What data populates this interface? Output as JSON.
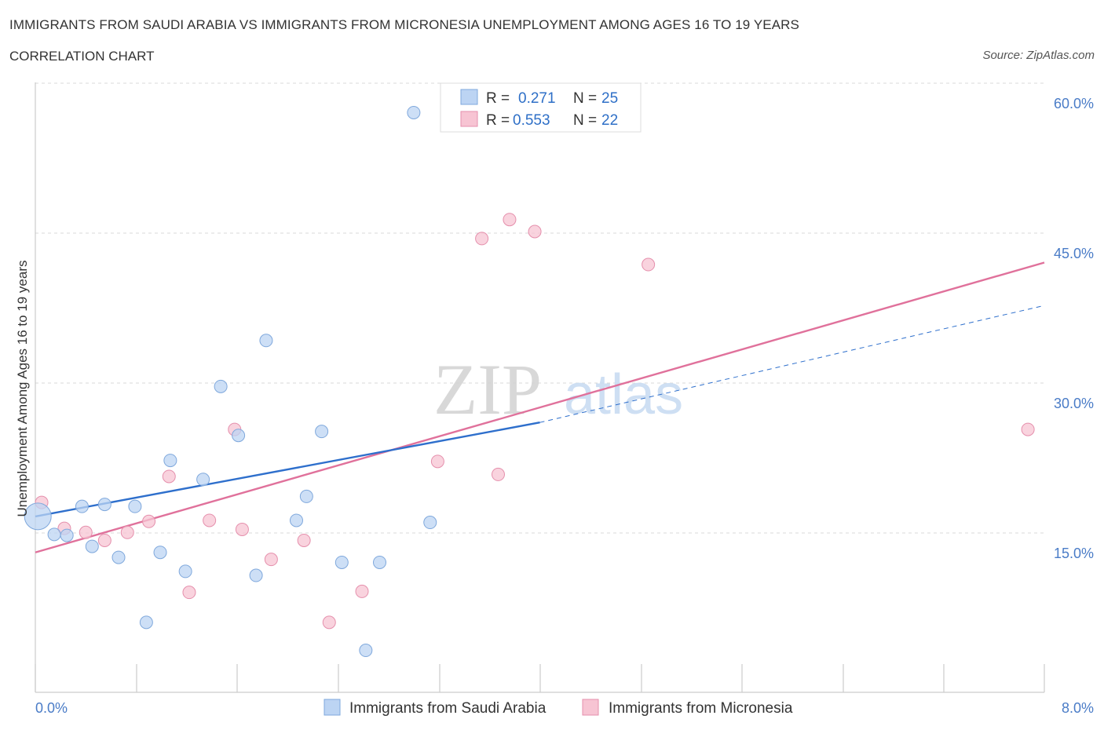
{
  "header": {
    "title": "IMMIGRANTS FROM SAUDI ARABIA VS IMMIGRANTS FROM MICRONESIA UNEMPLOYMENT AMONG AGES 16 TO 19 YEARS",
    "subtitle": "CORRELATION CHART",
    "source": "Source: ZipAtlas.com"
  },
  "watermark": {
    "zip": "ZIP",
    "atlas": "atlas"
  },
  "colors": {
    "blue_fill": "#bcd4f3",
    "blue_stroke": "#7fa8dc",
    "blue_line": "#2e6fcc",
    "pink_fill": "#f7c4d3",
    "pink_stroke": "#e58fac",
    "pink_line": "#e0719b",
    "grid": "#d8d8d8",
    "tick_text": "#4a7cc7"
  },
  "legend": {
    "rows": [
      {
        "r_label": "R =",
        "r_value": "0.271",
        "n_label": "N =",
        "n_value": "25"
      },
      {
        "r_label": "R =",
        "r_value": "0.553",
        "n_label": "N =",
        "n_value": "22"
      }
    ]
  },
  "chart_data": {
    "type": "scatter",
    "title": "IMMIGRANTS FROM SAUDI ARABIA VS IMMIGRANTS FROM MICRONESIA UNEMPLOYMENT AMONG AGES 16 TO 19 YEARS",
    "xlabel": "",
    "ylabel": "Unemployment Among Ages 16 to 19 years",
    "xlim": [
      0,
      8
    ],
    "ylim": [
      0,
      60
    ],
    "x_tick_labels": [
      "0.0%",
      "8.0%"
    ],
    "y_ticks": [
      15,
      30,
      45,
      60
    ],
    "y_tick_labels": [
      "15.0%",
      "30.0%",
      "45.0%",
      "60.0%"
    ],
    "grid": true,
    "series": [
      {
        "name": "Immigrants from Saudi Arabia",
        "R": 0.271,
        "N": 25,
        "trend": {
          "x0": 0,
          "y0": 17.6,
          "x1": 4.0,
          "y1": 27.0,
          "dashed_to_x": 8.0,
          "dashed_to_y": 38.7
        },
        "points": [
          {
            "x": 0.02,
            "y": 17.6,
            "big": true
          },
          {
            "x": 0.15,
            "y": 15.8
          },
          {
            "x": 0.25,
            "y": 15.7
          },
          {
            "x": 0.37,
            "y": 18.6
          },
          {
            "x": 0.45,
            "y": 14.6
          },
          {
            "x": 0.55,
            "y": 18.8
          },
          {
            "x": 0.66,
            "y": 13.5
          },
          {
            "x": 0.79,
            "y": 18.6
          },
          {
            "x": 0.88,
            "y": 7.0
          },
          {
            "x": 0.99,
            "y": 14.0
          },
          {
            "x": 1.07,
            "y": 23.2
          },
          {
            "x": 1.19,
            "y": 12.1
          },
          {
            "x": 1.33,
            "y": 21.3
          },
          {
            "x": 1.47,
            "y": 30.6
          },
          {
            "x": 1.61,
            "y": 25.7
          },
          {
            "x": 1.75,
            "y": 11.7
          },
          {
            "x": 1.83,
            "y": 35.2
          },
          {
            "x": 2.07,
            "y": 17.2
          },
          {
            "x": 2.15,
            "y": 19.6
          },
          {
            "x": 2.27,
            "y": 26.1
          },
          {
            "x": 2.43,
            "y": 13.0
          },
          {
            "x": 2.62,
            "y": 4.2
          },
          {
            "x": 2.73,
            "y": 13.0
          },
          {
            "x": 3.13,
            "y": 17.0
          },
          {
            "x": 3.0,
            "y": 58.0
          }
        ]
      },
      {
        "name": "Immigrants from Micronesia",
        "R": 0.553,
        "N": 22,
        "trend": {
          "x0": 0,
          "y0": 14.0,
          "x1": 8.0,
          "y1": 43.0
        },
        "points": [
          {
            "x": 0.05,
            "y": 19.0
          },
          {
            "x": 0.23,
            "y": 16.4
          },
          {
            "x": 0.4,
            "y": 16.0
          },
          {
            "x": 0.55,
            "y": 15.2
          },
          {
            "x": 0.73,
            "y": 16.0
          },
          {
            "x": 0.9,
            "y": 17.1
          },
          {
            "x": 1.06,
            "y": 21.6
          },
          {
            "x": 1.22,
            "y": 10.0
          },
          {
            "x": 1.38,
            "y": 17.2
          },
          {
            "x": 1.58,
            "y": 26.3
          },
          {
            "x": 1.64,
            "y": 16.3
          },
          {
            "x": 1.87,
            "y": 13.3
          },
          {
            "x": 2.13,
            "y": 15.2
          },
          {
            "x": 2.33,
            "y": 7.0
          },
          {
            "x": 2.59,
            "y": 10.1
          },
          {
            "x": 3.19,
            "y": 23.1
          },
          {
            "x": 3.54,
            "y": 45.4
          },
          {
            "x": 3.67,
            "y": 21.8
          },
          {
            "x": 3.76,
            "y": 47.3
          },
          {
            "x": 3.96,
            "y": 46.1
          },
          {
            "x": 4.86,
            "y": 42.8
          },
          {
            "x": 7.87,
            "y": 26.3
          }
        ]
      }
    ]
  }
}
